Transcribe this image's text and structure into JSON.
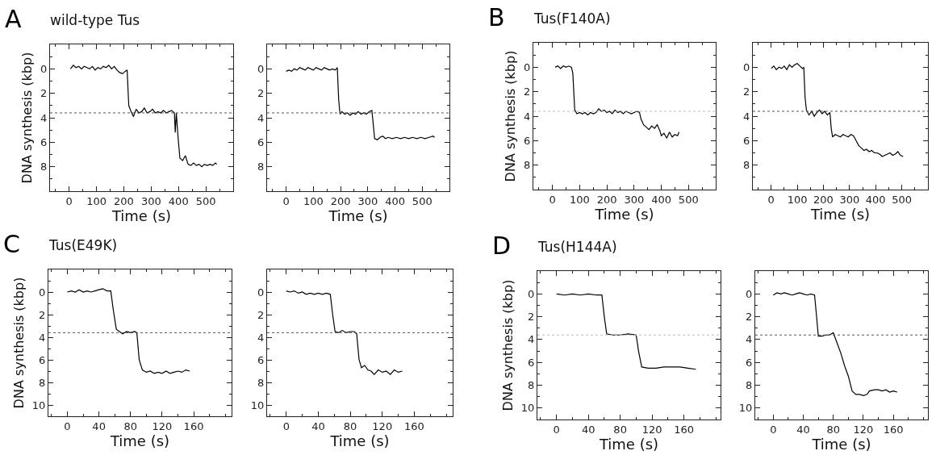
{
  "chart_data": [
    {
      "type": "line",
      "title": "wild-type Tus",
      "annotations": [
        "A"
      ],
      "xlabel": "Time (s)",
      "ylabel": "DNA synthesis (kbp)",
      "xlim": [
        -70,
        600
      ],
      "xticks": [
        0,
        100,
        200,
        300,
        400,
        500
      ],
      "ylim": [
        10,
        -2
      ],
      "yticks": [
        0,
        2,
        4,
        6,
        8
      ],
      "ref_lines": [
        {
          "axis": "y",
          "value": 3.6,
          "color": "#555555",
          "line_style": "dotted"
        }
      ],
      "series": [
        {
          "color": "#000000",
          "x": [
            5,
            15,
            25,
            35,
            45,
            55,
            65,
            75,
            85,
            95,
            105,
            115,
            125,
            135,
            145,
            155,
            165,
            175,
            185,
            195,
            205,
            212,
            218,
            225,
            235,
            245,
            255,
            265,
            275,
            285,
            295,
            305,
            315,
            325,
            335,
            345,
            355,
            365,
            375,
            385,
            388,
            392,
            398,
            405,
            415,
            425,
            435,
            445,
            455,
            465,
            475,
            485,
            495,
            505,
            515,
            525,
            535,
            540
          ],
          "values": [
            0.0,
            -0.3,
            -0.1,
            -0.2,
            0.0,
            -0.2,
            -0.1,
            0.0,
            -0.2,
            0.1,
            -0.1,
            0.0,
            -0.2,
            -0.1,
            -0.3,
            0.0,
            -0.2,
            0.1,
            0.3,
            0.4,
            0.2,
            0.1,
            3.0,
            3.4,
            3.9,
            3.3,
            3.6,
            3.5,
            3.2,
            3.6,
            3.5,
            3.3,
            3.6,
            3.5,
            3.6,
            3.4,
            3.6,
            3.5,
            3.4,
            3.6,
            5.2,
            3.6,
            5.5,
            7.3,
            7.5,
            7.1,
            7.8,
            7.9,
            7.7,
            7.9,
            7.8,
            8.0,
            7.8,
            7.9,
            7.8,
            7.9,
            7.7,
            7.8
          ]
        }
      ]
    },
    {
      "type": "line",
      "xlabel": "Time (s)",
      "xlim": [
        -70,
        600
      ],
      "xticks": [
        0,
        100,
        200,
        300,
        400,
        500
      ],
      "ylim": [
        10,
        -2
      ],
      "yticks": [
        0,
        2,
        4,
        6,
        8
      ],
      "ref_lines": [
        {
          "axis": "y",
          "value": 3.6,
          "color": "#555555",
          "line_style": "dotted"
        }
      ],
      "series": [
        {
          "color": "#000000",
          "x": [
            0,
            10,
            20,
            30,
            40,
            50,
            60,
            70,
            80,
            90,
            100,
            110,
            120,
            130,
            140,
            150,
            160,
            170,
            180,
            188,
            193,
            198,
            205,
            215,
            225,
            235,
            245,
            255,
            265,
            275,
            285,
            295,
            305,
            315,
            320,
            325,
            335,
            345,
            355,
            365,
            375,
            390,
            405,
            420,
            435,
            450,
            465,
            480,
            495,
            510,
            525,
            540,
            545
          ],
          "values": [
            0.2,
            0.1,
            0.2,
            0.0,
            0.1,
            -0.1,
            0.0,
            0.1,
            -0.1,
            0.0,
            0.1,
            -0.1,
            0.0,
            0.1,
            -0.1,
            0.0,
            0.1,
            0.0,
            0.1,
            -0.1,
            2.5,
            3.7,
            3.5,
            3.7,
            3.6,
            3.8,
            3.6,
            3.7,
            3.5,
            3.7,
            3.6,
            3.7,
            3.5,
            3.4,
            4.5,
            5.7,
            5.8,
            5.6,
            5.5,
            5.7,
            5.6,
            5.7,
            5.6,
            5.7,
            5.6,
            5.7,
            5.6,
            5.7,
            5.6,
            5.7,
            5.6,
            5.5,
            5.6
          ]
        }
      ]
    },
    {
      "type": "line",
      "title": "Tus(F140A)",
      "annotations": [
        "B"
      ],
      "xlabel": "Time (s)",
      "ylabel": "DNA synthesis (kbp)",
      "xlim": [
        -70,
        600
      ],
      "xticks": [
        0,
        100,
        200,
        300,
        400,
        500
      ],
      "ylim": [
        10,
        -2
      ],
      "yticks": [
        0,
        2,
        4,
        6,
        8
      ],
      "ref_lines": [
        {
          "axis": "y",
          "value": 3.6,
          "color": "#bbbbbb",
          "line_style": "dotted"
        }
      ],
      "series": [
        {
          "color": "#000000",
          "x": [
            10,
            20,
            30,
            40,
            50,
            60,
            70,
            75,
            82,
            90,
            100,
            110,
            120,
            130,
            140,
            150,
            160,
            170,
            180,
            190,
            200,
            210,
            220,
            230,
            240,
            250,
            260,
            270,
            280,
            290,
            300,
            310,
            320,
            325,
            335,
            345,
            355,
            365,
            375,
            385,
            395,
            400,
            410,
            420,
            430,
            440,
            450,
            460,
            465
          ],
          "values": [
            0.0,
            -0.1,
            0.1,
            -0.1,
            0.0,
            -0.1,
            0.0,
            0.5,
            3.5,
            3.8,
            3.7,
            3.8,
            3.7,
            3.9,
            3.7,
            3.8,
            3.7,
            3.4,
            3.6,
            3.5,
            3.7,
            3.6,
            3.8,
            3.5,
            3.7,
            3.6,
            3.8,
            3.6,
            3.7,
            3.8,
            3.7,
            3.6,
            3.7,
            4.2,
            4.7,
            4.9,
            5.1,
            4.8,
            5.0,
            4.7,
            5.2,
            5.6,
            5.4,
            5.8,
            5.3,
            5.7,
            5.5,
            5.6,
            5.3
          ]
        }
      ]
    },
    {
      "type": "line",
      "xlabel": "Time (s)",
      "xlim": [
        -70,
        600
      ],
      "xticks": [
        0,
        100,
        200,
        300,
        400,
        500
      ],
      "ylim": [
        10,
        -2
      ],
      "yticks": [
        0,
        2,
        4,
        6,
        8
      ],
      "ref_lines": [
        {
          "axis": "y",
          "value": 3.6,
          "color": "#555555",
          "line_style": "dotted"
        }
      ],
      "series": [
        {
          "color": "#000000",
          "x": [
            0,
            10,
            20,
            30,
            40,
            50,
            60,
            70,
            80,
            90,
            100,
            110,
            120,
            125,
            130,
            135,
            145,
            155,
            165,
            175,
            185,
            195,
            205,
            215,
            225,
            230,
            235,
            245,
            255,
            265,
            275,
            285,
            295,
            305,
            315,
            325,
            335,
            345,
            355,
            365,
            375,
            385,
            395,
            405,
            415,
            425,
            435,
            445,
            455,
            465,
            475,
            485,
            495,
            505
          ],
          "values": [
            0.1,
            -0.1,
            0.2,
            0.0,
            0.1,
            -0.1,
            0.2,
            -0.2,
            0.0,
            -0.2,
            -0.3,
            -0.1,
            0.1,
            0.0,
            2.5,
            3.5,
            3.9,
            3.6,
            4.0,
            3.7,
            3.5,
            3.8,
            3.6,
            3.9,
            3.7,
            5.0,
            5.7,
            5.5,
            5.6,
            5.7,
            5.5,
            5.6,
            5.7,
            5.5,
            5.6,
            6.0,
            6.4,
            6.6,
            6.8,
            6.7,
            6.9,
            6.8,
            7.0,
            7.0,
            7.1,
            7.3,
            7.2,
            7.1,
            7.0,
            7.2,
            7.1,
            6.9,
            7.2,
            7.3
          ]
        }
      ]
    },
    {
      "type": "line",
      "title": "Tus(E49K)",
      "annotations": [
        "C"
      ],
      "xlabel": "Time (s)",
      "ylabel": "DNA synthesis (kbp)",
      "xlim": [
        -24,
        208
      ],
      "xticks": [
        0,
        40,
        80,
        120,
        160
      ],
      "ylim": [
        11,
        -2
      ],
      "yticks": [
        0,
        2,
        4,
        6,
        8,
        10
      ],
      "ref_lines": [
        {
          "axis": "y",
          "value": 3.6,
          "color": "#555555",
          "line_style": "dotted"
        }
      ],
      "series": [
        {
          "color": "#000000",
          "x": [
            0,
            5,
            10,
            15,
            20,
            25,
            30,
            35,
            40,
            45,
            50,
            55,
            58,
            62,
            66,
            70,
            75,
            80,
            85,
            88,
            91,
            95,
            100,
            105,
            110,
            115,
            120,
            125,
            130,
            135,
            140,
            145,
            150,
            155
          ],
          "values": [
            0.0,
            -0.1,
            0.0,
            -0.2,
            0.0,
            -0.1,
            0.0,
            -0.1,
            -0.2,
            -0.3,
            -0.1,
            -0.1,
            1.5,
            3.3,
            3.5,
            3.7,
            3.5,
            3.6,
            3.5,
            3.6,
            6.0,
            6.9,
            7.1,
            7.0,
            7.2,
            7.1,
            7.2,
            7.0,
            7.2,
            7.1,
            7.0,
            7.1,
            6.9,
            7.0
          ]
        }
      ]
    },
    {
      "type": "line",
      "xlabel": "Time (s)",
      "xlim": [
        -24,
        208
      ],
      "xticks": [
        0,
        40,
        80,
        120,
        160
      ],
      "ylim": [
        11,
        -2
      ],
      "yticks": [
        0,
        2,
        4,
        6,
        8,
        10
      ],
      "ref_lines": [
        {
          "axis": "y",
          "value": 3.6,
          "color": "#555555",
          "line_style": "dotted"
        }
      ],
      "series": [
        {
          "color": "#000000",
          "x": [
            0,
            5,
            10,
            15,
            20,
            25,
            30,
            35,
            40,
            45,
            50,
            55,
            58,
            61,
            65,
            70,
            75,
            80,
            85,
            88,
            91,
            94,
            98,
            102,
            106,
            110,
            115,
            120,
            125,
            130,
            135,
            140,
            145
          ],
          "values": [
            -0.1,
            0.0,
            -0.1,
            0.1,
            0.0,
            0.2,
            0.1,
            0.2,
            0.1,
            0.2,
            0.1,
            0.2,
            2.0,
            3.5,
            3.6,
            3.4,
            3.6,
            3.5,
            3.5,
            3.7,
            6.0,
            6.7,
            6.5,
            6.9,
            7.0,
            7.3,
            6.9,
            7.1,
            7.0,
            7.3,
            6.9,
            7.1,
            7.0
          ]
        }
      ]
    },
    {
      "type": "line",
      "title": "Tus(H144A)",
      "annotations": [
        "D"
      ],
      "xlabel": "Time (s)",
      "ylabel": "DNA synthesis (kbp)",
      "xlim": [
        -24,
        206
      ],
      "xticks": [
        0,
        40,
        80,
        120,
        160
      ],
      "ylim": [
        11,
        -2
      ],
      "yticks": [
        0,
        2,
        4,
        6,
        8,
        10
      ],
      "ref_lines": [
        {
          "axis": "y",
          "value": 3.6,
          "color": "#bbbbbb",
          "line_style": "dotted"
        }
      ],
      "series": [
        {
          "color": "#000000",
          "x": [
            0,
            10,
            20,
            30,
            40,
            50,
            57,
            60,
            63,
            70,
            80,
            90,
            100,
            103,
            107,
            115,
            125,
            135,
            145,
            155,
            165,
            175
          ],
          "values": [
            0.0,
            0.1,
            0.0,
            0.1,
            0.0,
            0.1,
            0.1,
            2.0,
            3.5,
            3.6,
            3.6,
            3.5,
            3.6,
            5.0,
            6.4,
            6.5,
            6.5,
            6.4,
            6.4,
            6.4,
            6.5,
            6.6
          ]
        }
      ]
    },
    {
      "type": "line",
      "xlabel": "Time (s)",
      "xlim": [
        -24,
        206
      ],
      "xticks": [
        0,
        40,
        80,
        120,
        160
      ],
      "ylim": [
        11,
        -2
      ],
      "yticks": [
        0,
        2,
        4,
        6,
        8,
        10
      ],
      "ref_lines": [
        {
          "axis": "y",
          "value": 3.6,
          "color": "#555555",
          "line_style": "dotted"
        }
      ],
      "series": [
        {
          "color": "#000000",
          "x": [
            0,
            5,
            10,
            15,
            20,
            25,
            30,
            35,
            40,
            45,
            50,
            55,
            57,
            60,
            65,
            70,
            75,
            80,
            85,
            90,
            95,
            100,
            105,
            110,
            115,
            120,
            125,
            128,
            135,
            140,
            145,
            150,
            155,
            160,
            165
          ],
          "values": [
            0.1,
            -0.1,
            0.0,
            -0.1,
            0.0,
            0.1,
            0.0,
            -0.1,
            0.0,
            0.1,
            0.0,
            0.1,
            1.5,
            3.7,
            3.7,
            3.6,
            3.6,
            3.4,
            4.3,
            5.2,
            6.3,
            7.2,
            8.5,
            8.8,
            8.8,
            8.9,
            8.8,
            8.5,
            8.4,
            8.4,
            8.5,
            8.4,
            8.6,
            8.5,
            8.6
          ]
        }
      ]
    }
  ]
}
